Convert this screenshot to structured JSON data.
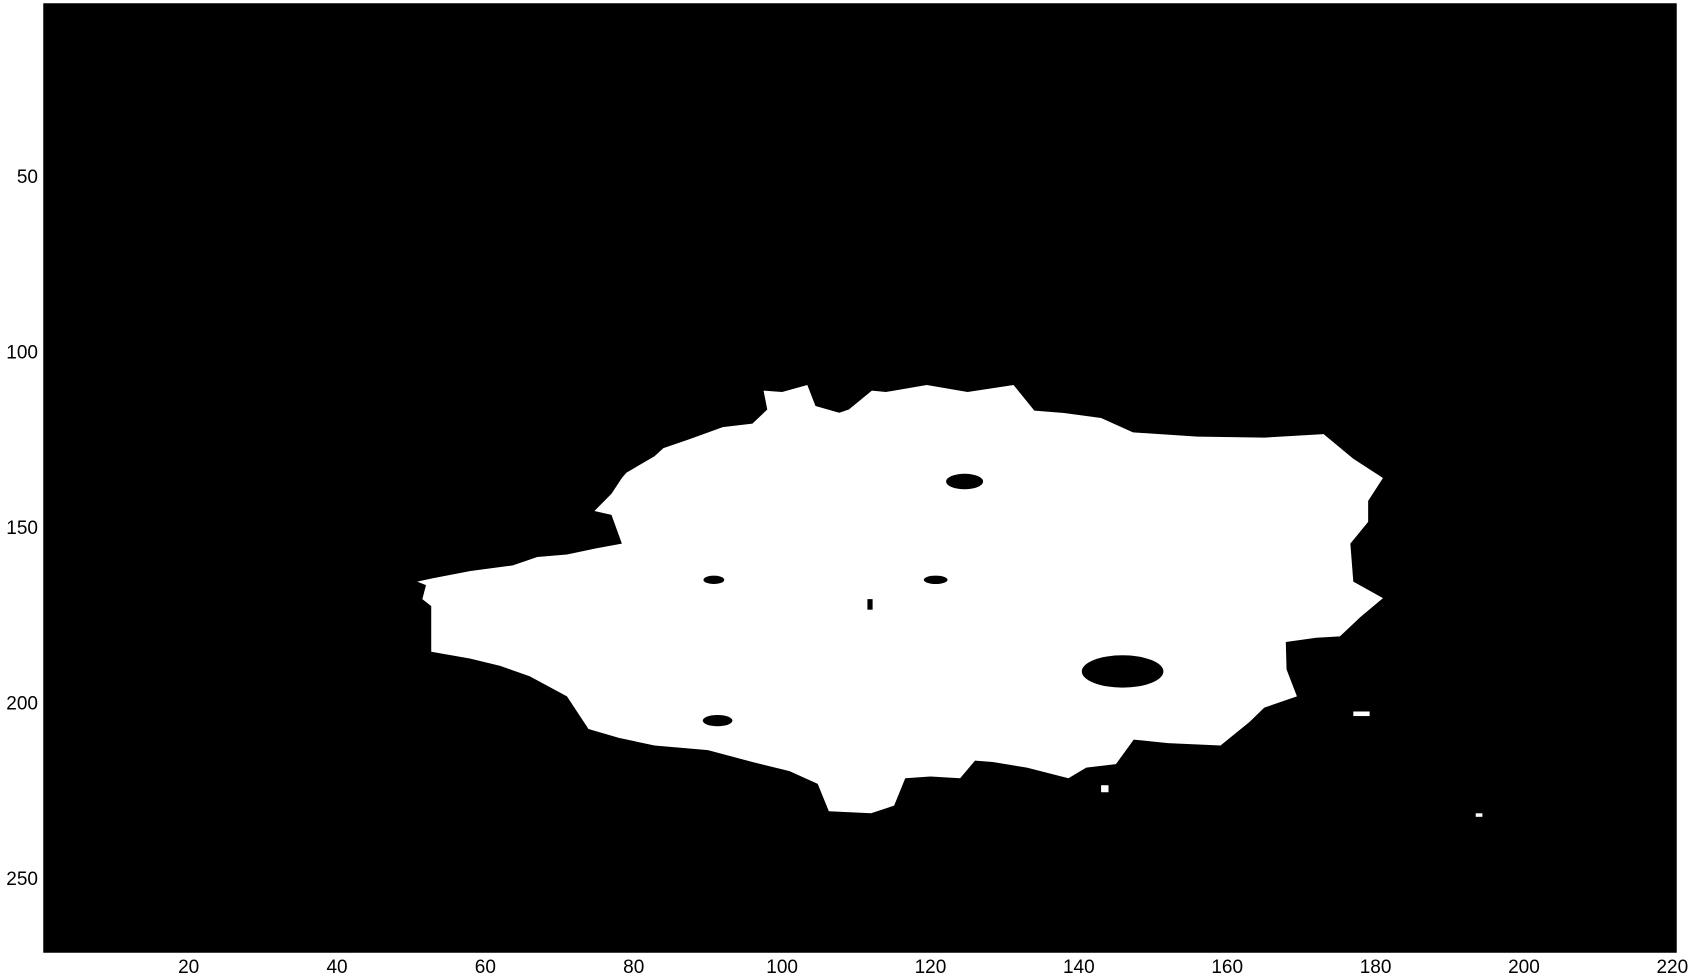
{
  "chart_data": {
    "type": "image",
    "xlim": [
      0.5,
      220.5
    ],
    "ylim": [
      0.5,
      270.5
    ],
    "y_reversed": true,
    "xticks": [
      20,
      40,
      60,
      80,
      100,
      120,
      140,
      160,
      180,
      200,
      220
    ],
    "yticks": [
      50,
      100,
      150,
      200,
      250
    ]
  }
}
